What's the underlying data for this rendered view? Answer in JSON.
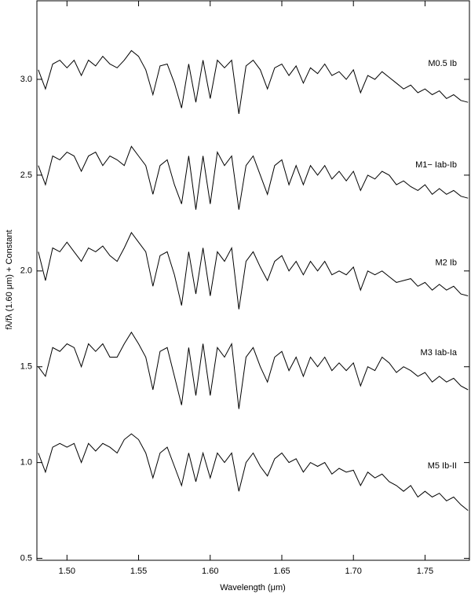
{
  "chart_data": {
    "type": "line",
    "xlabel": "Wavelength (μm)",
    "ylabel": "fλ/fλ (1.60 μm) + Constant",
    "xlim": [
      1.479,
      1.781
    ],
    "ylim": [
      0.49,
      3.41
    ],
    "xticks": [
      {
        "value": 1.5,
        "label": "1.50"
      },
      {
        "value": 1.55,
        "label": "1.55"
      },
      {
        "value": 1.6,
        "label": "1.60"
      },
      {
        "value": 1.65,
        "label": "1.65"
      },
      {
        "value": 1.7,
        "label": "1.70"
      },
      {
        "value": 1.75,
        "label": "1.75"
      }
    ],
    "yticks": [
      {
        "value": 0.5,
        "label": "0.5"
      },
      {
        "value": 1,
        "label": "1.0"
      },
      {
        "value": 1.5,
        "label": "1.5"
      },
      {
        "value": 2,
        "label": "2.0"
      },
      {
        "value": 2.5,
        "label": "2.5"
      },
      {
        "value": 3,
        "label": "3.0"
      }
    ],
    "x": [
      1.48,
      1.485,
      1.49,
      1.495,
      1.5,
      1.505,
      1.51,
      1.515,
      1.52,
      1.525,
      1.53,
      1.535,
      1.54,
      1.545,
      1.55,
      1.555,
      1.56,
      1.565,
      1.57,
      1.575,
      1.58,
      1.585,
      1.59,
      1.595,
      1.6,
      1.605,
      1.61,
      1.615,
      1.62,
      1.625,
      1.63,
      1.635,
      1.64,
      1.645,
      1.65,
      1.655,
      1.66,
      1.665,
      1.67,
      1.675,
      1.68,
      1.685,
      1.69,
      1.695,
      1.7,
      1.705,
      1.71,
      1.715,
      1.72,
      1.725,
      1.73,
      1.735,
      1.74,
      1.745,
      1.75,
      1.755,
      1.76,
      1.765,
      1.77,
      1.775,
      1.78
    ],
    "series": [
      {
        "name": "M0.5 Ib",
        "color": "#000000",
        "values": [
          3.05,
          2.95,
          3.08,
          3.1,
          3.06,
          3.1,
          3.02,
          3.1,
          3.07,
          3.12,
          3.08,
          3.06,
          3.1,
          3.15,
          3.12,
          3.05,
          2.92,
          3.07,
          3.08,
          2.98,
          2.85,
          3.08,
          2.88,
          3.1,
          2.9,
          3.1,
          3.06,
          3.1,
          2.82,
          3.07,
          3.1,
          3.05,
          2.95,
          3.06,
          3.08,
          3.02,
          3.07,
          2.98,
          3.06,
          3.03,
          3.08,
          3.02,
          3.04,
          3.0,
          3.05,
          2.93,
          3.02,
          3.0,
          3.04,
          3.01,
          2.98,
          2.95,
          2.97,
          2.93,
          2.95,
          2.92,
          2.94,
          2.9,
          2.92,
          2.89,
          2.88
        ]
      },
      {
        "name": "M1− Iab-Ib",
        "color": "#000000",
        "values": [
          2.55,
          2.45,
          2.6,
          2.58,
          2.62,
          2.6,
          2.52,
          2.6,
          2.62,
          2.55,
          2.6,
          2.58,
          2.55,
          2.65,
          2.6,
          2.55,
          2.4,
          2.55,
          2.58,
          2.45,
          2.35,
          2.6,
          2.32,
          2.6,
          2.35,
          2.62,
          2.55,
          2.6,
          2.32,
          2.55,
          2.6,
          2.5,
          2.4,
          2.55,
          2.58,
          2.45,
          2.55,
          2.45,
          2.55,
          2.5,
          2.55,
          2.48,
          2.52,
          2.47,
          2.52,
          2.42,
          2.5,
          2.48,
          2.52,
          2.5,
          2.45,
          2.47,
          2.44,
          2.42,
          2.45,
          2.4,
          2.43,
          2.4,
          2.42,
          2.39,
          2.38
        ]
      },
      {
        "name": "M2 Ib",
        "color": "#000000",
        "values": [
          2.1,
          1.95,
          2.12,
          2.1,
          2.15,
          2.1,
          2.05,
          2.12,
          2.1,
          2.13,
          2.08,
          2.05,
          2.12,
          2.2,
          2.15,
          2.1,
          1.92,
          2.08,
          2.1,
          1.98,
          1.82,
          2.1,
          1.88,
          2.12,
          1.87,
          2.1,
          2.05,
          2.12,
          1.8,
          2.05,
          2.1,
          2.02,
          1.95,
          2.05,
          2.08,
          2.0,
          2.05,
          1.98,
          2.05,
          2.0,
          2.05,
          1.98,
          2.0,
          1.98,
          2.02,
          1.9,
          2.0,
          1.98,
          2.0,
          1.97,
          1.94,
          1.95,
          1.96,
          1.92,
          1.94,
          1.9,
          1.93,
          1.9,
          1.92,
          1.88,
          1.87
        ]
      },
      {
        "name": "M3 Iab-Ia",
        "color": "#000000",
        "values": [
          1.5,
          1.45,
          1.6,
          1.58,
          1.62,
          1.6,
          1.5,
          1.62,
          1.58,
          1.62,
          1.55,
          1.55,
          1.62,
          1.68,
          1.62,
          1.55,
          1.38,
          1.58,
          1.6,
          1.45,
          1.3,
          1.6,
          1.35,
          1.62,
          1.35,
          1.6,
          1.55,
          1.62,
          1.28,
          1.55,
          1.6,
          1.5,
          1.42,
          1.55,
          1.58,
          1.48,
          1.55,
          1.45,
          1.55,
          1.5,
          1.55,
          1.48,
          1.52,
          1.48,
          1.52,
          1.4,
          1.5,
          1.48,
          1.55,
          1.52,
          1.47,
          1.5,
          1.48,
          1.45,
          1.47,
          1.42,
          1.45,
          1.42,
          1.44,
          1.4,
          1.38
        ]
      },
      {
        "name": "M5 Ib-II",
        "color": "#000000",
        "values": [
          1.05,
          0.95,
          1.08,
          1.1,
          1.08,
          1.1,
          1.0,
          1.1,
          1.06,
          1.1,
          1.08,
          1.05,
          1.12,
          1.15,
          1.12,
          1.05,
          0.92,
          1.05,
          1.08,
          0.98,
          0.88,
          1.05,
          0.9,
          1.05,
          0.92,
          1.05,
          1.0,
          1.05,
          0.85,
          1.0,
          1.05,
          0.98,
          0.93,
          1.02,
          1.05,
          1.0,
          1.02,
          0.95,
          1.0,
          0.98,
          1.0,
          0.94,
          0.97,
          0.95,
          0.96,
          0.88,
          0.95,
          0.92,
          0.94,
          0.9,
          0.88,
          0.85,
          0.88,
          0.82,
          0.85,
          0.82,
          0.84,
          0.8,
          0.82,
          0.78,
          0.75
        ]
      }
    ]
  }
}
